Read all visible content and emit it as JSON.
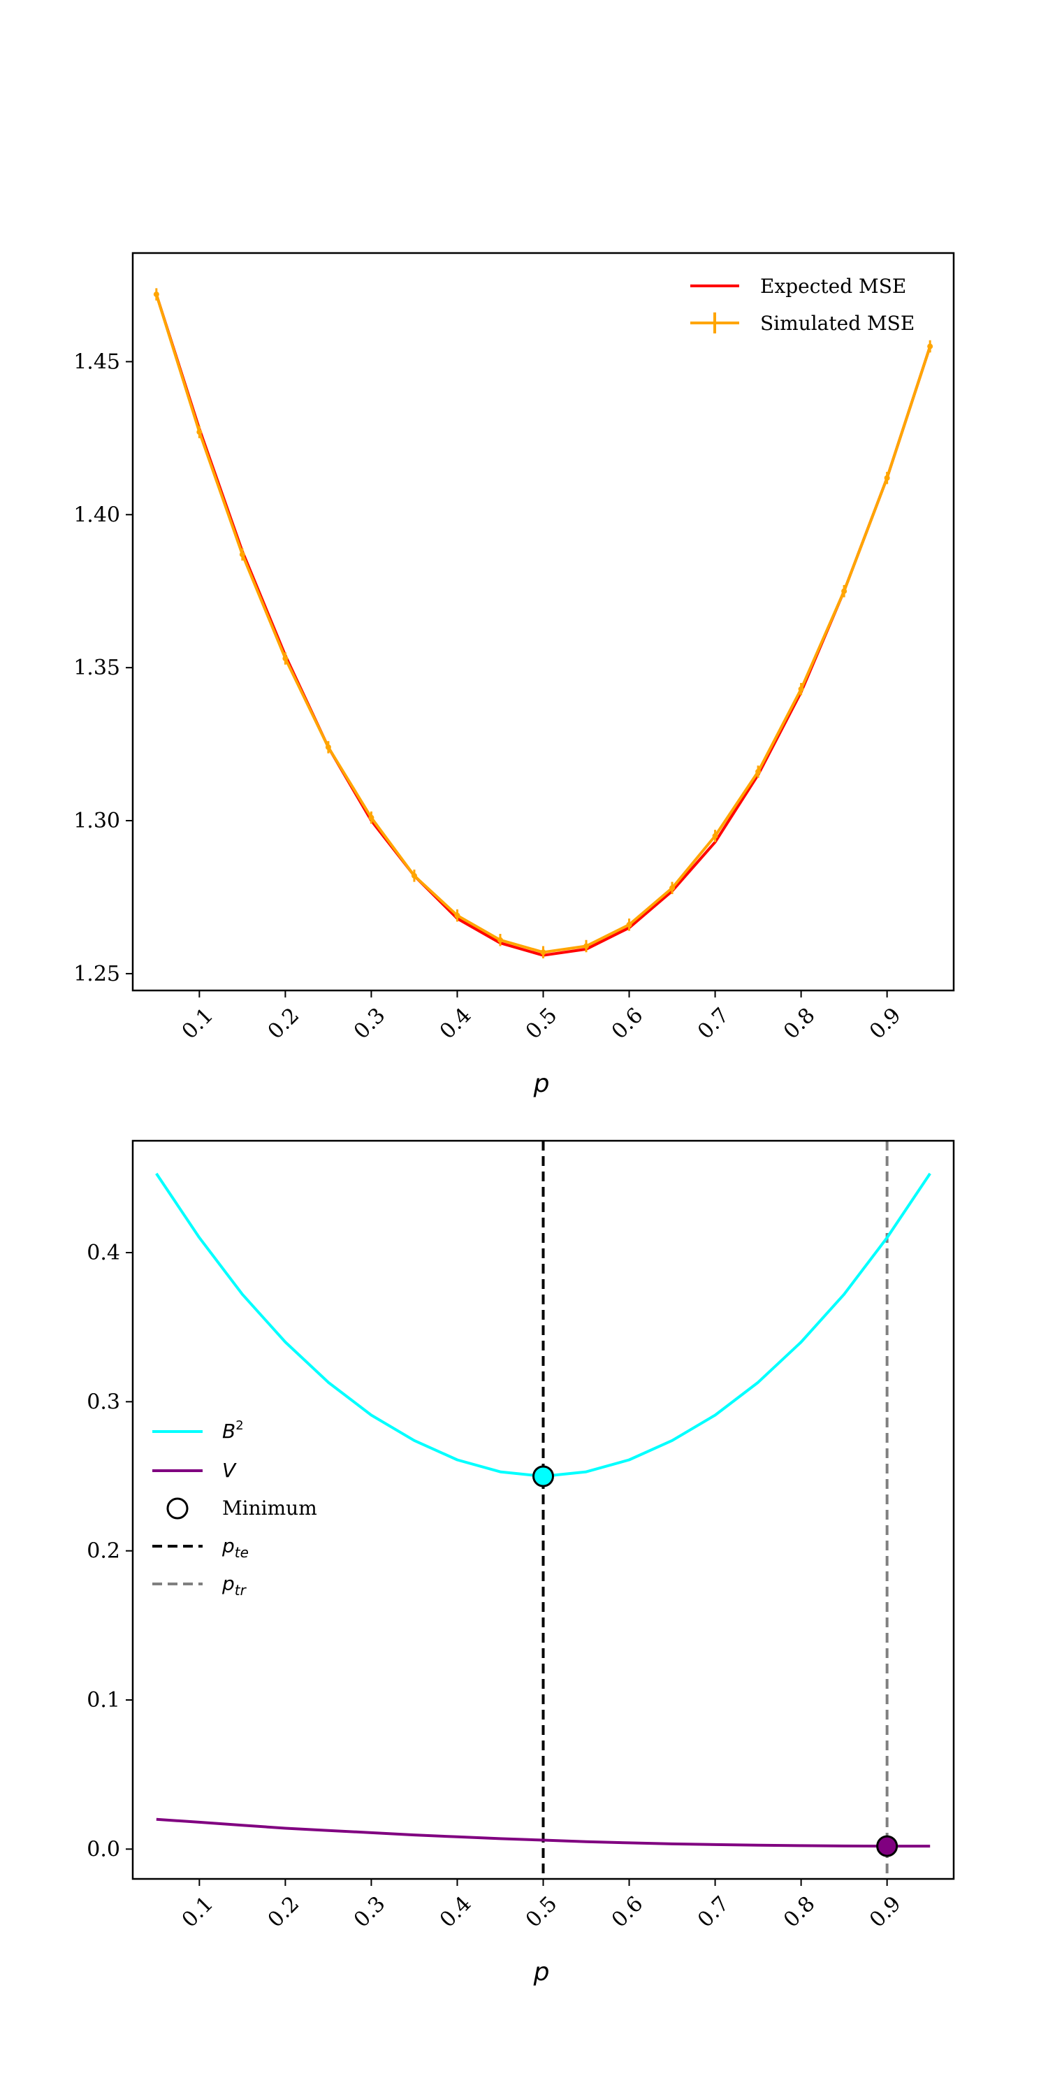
{
  "chart_data": [
    {
      "type": "line",
      "xlabel": "p",
      "ylabel": "",
      "xlim": [
        0.0225,
        0.9775
      ],
      "ylim": [
        1.2445,
        1.4855
      ],
      "xticks": [
        "0.1",
        "0.2",
        "0.3",
        "0.4",
        "0.5",
        "0.6",
        "0.7",
        "0.8",
        "0.9"
      ],
      "yticks": [
        "1.25",
        "1.30",
        "1.35",
        "1.40",
        "1.45"
      ],
      "grid": false,
      "legend_position": "top-right",
      "x": [
        0.05,
        0.1,
        0.15,
        0.2,
        0.25,
        0.3,
        0.35,
        0.4,
        0.45,
        0.5,
        0.55,
        0.6,
        0.65,
        0.7,
        0.75,
        0.8,
        0.85,
        0.9,
        0.95
      ],
      "series": [
        {
          "name": "Expected MSE",
          "color": "#ff0000",
          "values": [
            1.472,
            1.428,
            1.388,
            1.354,
            1.324,
            1.3,
            1.282,
            1.268,
            1.26,
            1.256,
            1.258,
            1.265,
            1.277,
            1.293,
            1.315,
            1.342,
            1.375,
            1.412,
            1.455
          ]
        },
        {
          "name": "Simulated MSE",
          "color": "#ffa500",
          "values": [
            1.472,
            1.427,
            1.387,
            1.353,
            1.324,
            1.301,
            1.282,
            1.269,
            1.261,
            1.257,
            1.259,
            1.266,
            1.278,
            1.295,
            1.316,
            1.343,
            1.375,
            1.412,
            1.455
          ],
          "error": 0.002
        }
      ]
    },
    {
      "type": "line",
      "xlabel": "p",
      "ylabel": "",
      "xlim": [
        0.0225,
        0.9775
      ],
      "ylim": [
        -0.02,
        0.475
      ],
      "xticks": [
        "0.1",
        "0.2",
        "0.3",
        "0.4",
        "0.5",
        "0.6",
        "0.7",
        "0.8",
        "0.9"
      ],
      "yticks": [
        "0.0",
        "0.1",
        "0.2",
        "0.3",
        "0.4"
      ],
      "grid": false,
      "legend_position": "center-left",
      "x": [
        0.05,
        0.1,
        0.15,
        0.2,
        0.25,
        0.3,
        0.35,
        0.4,
        0.45,
        0.5,
        0.55,
        0.6,
        0.65,
        0.7,
        0.75,
        0.8,
        0.85,
        0.9,
        0.95
      ],
      "series": [
        {
          "name": "B",
          "superscript": "2",
          "color": "#00ffff",
          "values": [
            0.453,
            0.41,
            0.372,
            0.34,
            0.313,
            0.291,
            0.274,
            0.261,
            0.253,
            0.25,
            0.253,
            0.261,
            0.274,
            0.291,
            0.313,
            0.34,
            0.372,
            0.41,
            0.453
          ]
        },
        {
          "name": "V",
          "color": "#800080",
          "values": [
            0.02,
            0.018,
            0.016,
            0.014,
            0.0125,
            0.011,
            0.0095,
            0.0082,
            0.007,
            0.006,
            0.005,
            0.0042,
            0.0035,
            0.003,
            0.0026,
            0.0023,
            0.0021,
            0.002,
            0.002
          ]
        }
      ],
      "minimum_label": "Minimum",
      "minima": [
        {
          "x": 0.5,
          "y": 0.25,
          "color": "#00ffff"
        },
        {
          "x": 0.9,
          "y": 0.002,
          "color": "#800080"
        }
      ],
      "vlines": [
        {
          "x": 0.5,
          "label_base": "p",
          "label_sub": "te",
          "color": "#000000"
        },
        {
          "x": 0.9,
          "label_base": "p",
          "label_sub": "tr",
          "color": "#808080"
        }
      ]
    }
  ]
}
